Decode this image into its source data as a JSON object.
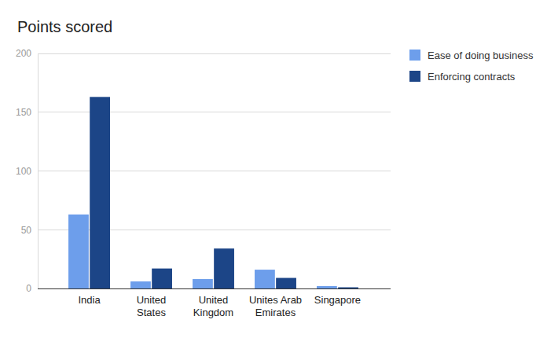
{
  "chart_data": {
    "type": "bar",
    "title": "Points scored",
    "categories": [
      "India",
      "United States",
      "United Kingdom",
      "Unites Arab Emirates",
      "Singapore"
    ],
    "series": [
      {
        "name": "Ease of doing business",
        "color": "#6d9eeb",
        "values": [
          63,
          6,
          8,
          16,
          2
        ]
      },
      {
        "name": "Enforcing contracts",
        "color": "#1c4587",
        "values": [
          163,
          17,
          34,
          9,
          1
        ]
      }
    ],
    "ylim": [
      0,
      200
    ],
    "yticks": [
      0,
      50,
      100,
      150,
      200
    ],
    "grid": true,
    "legend": "right"
  }
}
